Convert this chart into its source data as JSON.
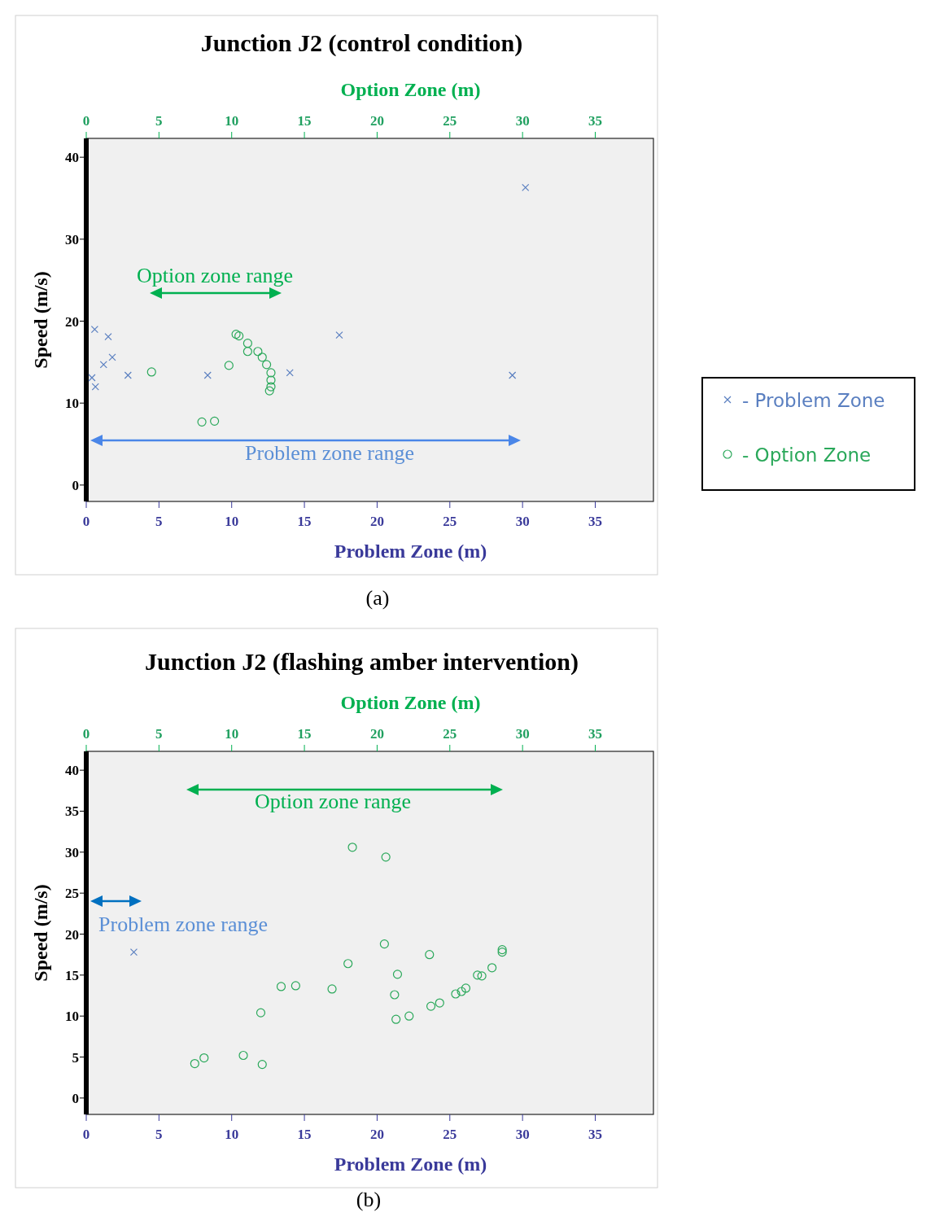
{
  "chart_data": [
    {
      "type": "scatter",
      "title": "Junction J2 (control condition)",
      "xlabel": "Problem Zone (m)",
      "x2label": "Option Zone (m)",
      "ylabel": "Speed (m/s)",
      "xlim": [
        0,
        39
      ],
      "xticks": [
        0,
        5,
        10,
        15,
        20,
        25,
        30,
        35
      ],
      "x2lim": [
        0,
        39
      ],
      "x2ticks": [
        0,
        5,
        10,
        15,
        20,
        25,
        30,
        35
      ],
      "ylim": [
        -2,
        42.3
      ],
      "yticks": [
        0,
        10,
        20,
        30,
        40
      ],
      "grid": false,
      "legend": "right",
      "series": [
        {
          "name": "- Problem Zone",
          "color": "#5a7fc0",
          "marker": "cross",
          "x": [
            0.58,
            1.51,
            1.79,
            1.19,
            0.39,
            0.63,
            2.87,
            8.35,
            14.0,
            17.4,
            30.2,
            29.3
          ],
          "values": [
            19.0,
            18.1,
            15.6,
            14.7,
            13.1,
            12.0,
            13.4,
            13.4,
            13.7,
            18.3,
            36.3,
            13.4
          ]
        },
        {
          "name": "- Option Zone",
          "color": "#2aa85a",
          "marker": "circle",
          "x": [
            4.49,
            9.81,
            10.3,
            10.5,
            11.1,
            11.1,
            11.8,
            12.1,
            12.4,
            12.7,
            12.7,
            12.7,
            12.6,
            7.95,
            8.82
          ],
          "values": [
            13.8,
            14.6,
            18.4,
            18.2,
            17.3,
            16.3,
            16.3,
            15.6,
            14.7,
            13.7,
            12.8,
            12.0,
            11.5,
            7.7,
            7.8
          ]
        }
      ],
      "annotations": [
        "Option zone range",
        "Problem zone range",
        "(a)"
      ]
    },
    {
      "type": "scatter",
      "title": "Junction J2 (flashing amber intervention)",
      "xlabel": "Problem Zone (m)",
      "x2label": "Option Zone (m)",
      "ylabel": "Speed (m/s)",
      "xlim": [
        0,
        39
      ],
      "xticks": [
        0,
        5,
        10,
        15,
        20,
        25,
        30,
        35
      ],
      "x2lim": [
        0,
        39
      ],
      "x2ticks": [
        0,
        5,
        10,
        15,
        20,
        25,
        30,
        35
      ],
      "ylim": [
        -2,
        42.3
      ],
      "yticks": [
        0,
        5,
        10,
        15,
        20,
        25,
        30,
        35,
        40
      ],
      "grid": false,
      "series": [
        {
          "color": "#5a7fc0",
          "marker": "cross",
          "x": [
            3.27
          ],
          "values": [
            17.8
          ]
        },
        {
          "color": "#2aa85a",
          "marker": "circle",
          "x": [
            18.3,
            20.6,
            20.5,
            23.6,
            18.0,
            21.4,
            13.4,
            14.4,
            16.9,
            21.2,
            12.0,
            21.3,
            22.2,
            23.7,
            24.3,
            25.4,
            25.8,
            26.1,
            26.9,
            27.2,
            27.9,
            28.6,
            28.6,
            7.46,
            8.1,
            10.8,
            12.1
          ],
          "values": [
            30.6,
            29.4,
            18.8,
            17.5,
            16.4,
            15.1,
            13.6,
            13.7,
            13.3,
            12.6,
            10.4,
            9.6,
            10.0,
            11.2,
            11.6,
            12.7,
            13.0,
            13.4,
            15.0,
            14.9,
            15.9,
            18.1,
            17.8,
            4.2,
            4.9,
            5.2,
            4.1
          ]
        }
      ],
      "annotations": [
        "Option zone range",
        "Problem zone range",
        "(b)"
      ]
    }
  ]
}
